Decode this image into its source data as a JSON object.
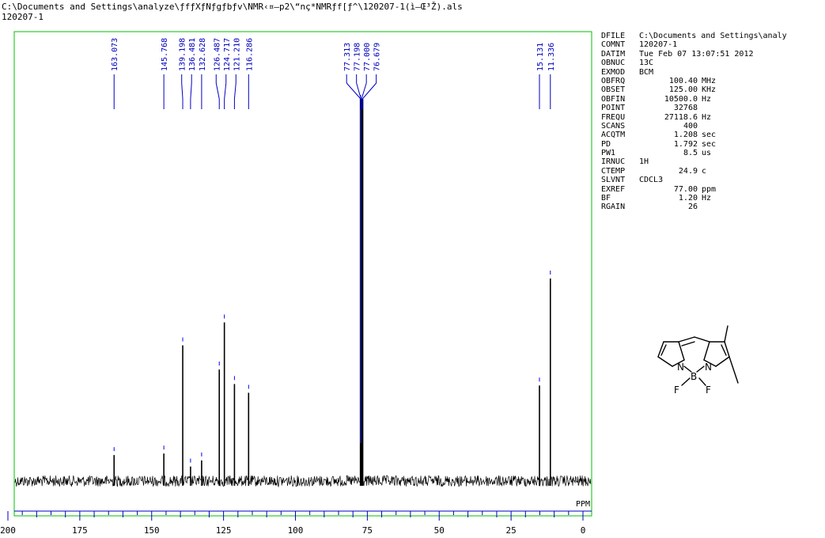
{
  "header": {
    "path": "C:\\Documents and Settings\\analyze\\ƒfƒXƒNƒgƒbƒv\\NMR‹¤—p2\\“nç*NMRƒf[ƒ^\\120207-1(ì—Œ³Ž).als",
    "sample": "120207-1"
  },
  "parameters": [
    {
      "name": "DFILE",
      "value": "C:\\Documents and Settings\\analy",
      "unit": "",
      "align": "left"
    },
    {
      "name": "COMNT",
      "value": "120207-1",
      "unit": "",
      "align": "left"
    },
    {
      "name": "DATIM",
      "value": "Tue Feb 07 13:07:51 2012",
      "unit": "",
      "align": "left"
    },
    {
      "name": "OBNUC",
      "value": "13C",
      "unit": "",
      "align": "left"
    },
    {
      "name": "EXMOD",
      "value": "BCM",
      "unit": "",
      "align": "left"
    },
    {
      "name": "OBFRQ",
      "value": "100.40",
      "unit": "MHz",
      "align": "right"
    },
    {
      "name": "OBSET",
      "value": "125.00",
      "unit": "KHz",
      "align": "right"
    },
    {
      "name": "OBFIN",
      "value": "10500.0",
      "unit": "Hz",
      "align": "right"
    },
    {
      "name": "POINT",
      "value": "32768",
      "unit": "",
      "align": "right"
    },
    {
      "name": "FREQU",
      "value": "27118.6",
      "unit": "Hz",
      "align": "right"
    },
    {
      "name": "SCANS",
      "value": "400",
      "unit": "",
      "align": "right"
    },
    {
      "name": "ACQTM",
      "value": "1.208",
      "unit": "sec",
      "align": "right"
    },
    {
      "name": "PD",
      "value": "1.792",
      "unit": "sec",
      "align": "right"
    },
    {
      "name": "PW1",
      "value": "8.5",
      "unit": "us",
      "align": "right"
    },
    {
      "name": "IRNUC",
      "value": "1H",
      "unit": "",
      "align": "left"
    },
    {
      "name": "CTEMP",
      "value": "24.9",
      "unit": "c",
      "align": "right"
    },
    {
      "name": "SLVNT",
      "value": "CDCL3",
      "unit": "",
      "align": "left"
    },
    {
      "name": "EXREF",
      "value": "77.00",
      "unit": "ppm",
      "align": "right"
    },
    {
      "name": "BF",
      "value": "1.20",
      "unit": "Hz",
      "align": "right"
    },
    {
      "name": "RGAIN",
      "value": "26",
      "unit": "",
      "align": "right"
    }
  ],
  "chart_data": {
    "type": "line",
    "title": "",
    "xlabel": "PPM",
    "ylabel": "",
    "xlim": [
      200,
      0
    ],
    "ylim": [
      0,
      100
    ],
    "x_reversed": true,
    "grid": false,
    "x_ticks": [
      200,
      175,
      150,
      125,
      100,
      75,
      50,
      25,
      0
    ],
    "tick_labels": [
      "200",
      "175",
      "150",
      "125",
      "100",
      "75",
      "50",
      "25",
      "0"
    ],
    "peak_labels": [
      "163.073",
      "145.768",
      "139.198",
      "136.481",
      "132.628",
      "126.487",
      "124.717",
      "121.210",
      "116.286",
      "77.313",
      "77.198",
      "77.000",
      "76.679",
      "15.131",
      "11.336"
    ],
    "peaks": [
      {
        "x": 163.073,
        "y": 6.8
      },
      {
        "x": 145.768,
        "y": 7.2
      },
      {
        "x": 139.198,
        "y": 35.5
      },
      {
        "x": 136.481,
        "y": 3.8
      },
      {
        "x": 132.628,
        "y": 5.4
      },
      {
        "x": 126.487,
        "y": 29.2
      },
      {
        "x": 124.717,
        "y": 41.5
      },
      {
        "x": 121.21,
        "y": 25.4
      },
      {
        "x": 116.286,
        "y": 23.1
      },
      {
        "x": 77.313,
        "y": 100
      },
      {
        "x": 77.198,
        "y": 100
      },
      {
        "x": 77.0,
        "y": 100
      },
      {
        "x": 76.679,
        "y": 100
      },
      {
        "x": 15.131,
        "y": 25.0
      },
      {
        "x": 11.336,
        "y": 53.0
      }
    ]
  },
  "structure": {
    "atoms": [
      "N",
      "N",
      "B",
      "F",
      "F"
    ]
  }
}
